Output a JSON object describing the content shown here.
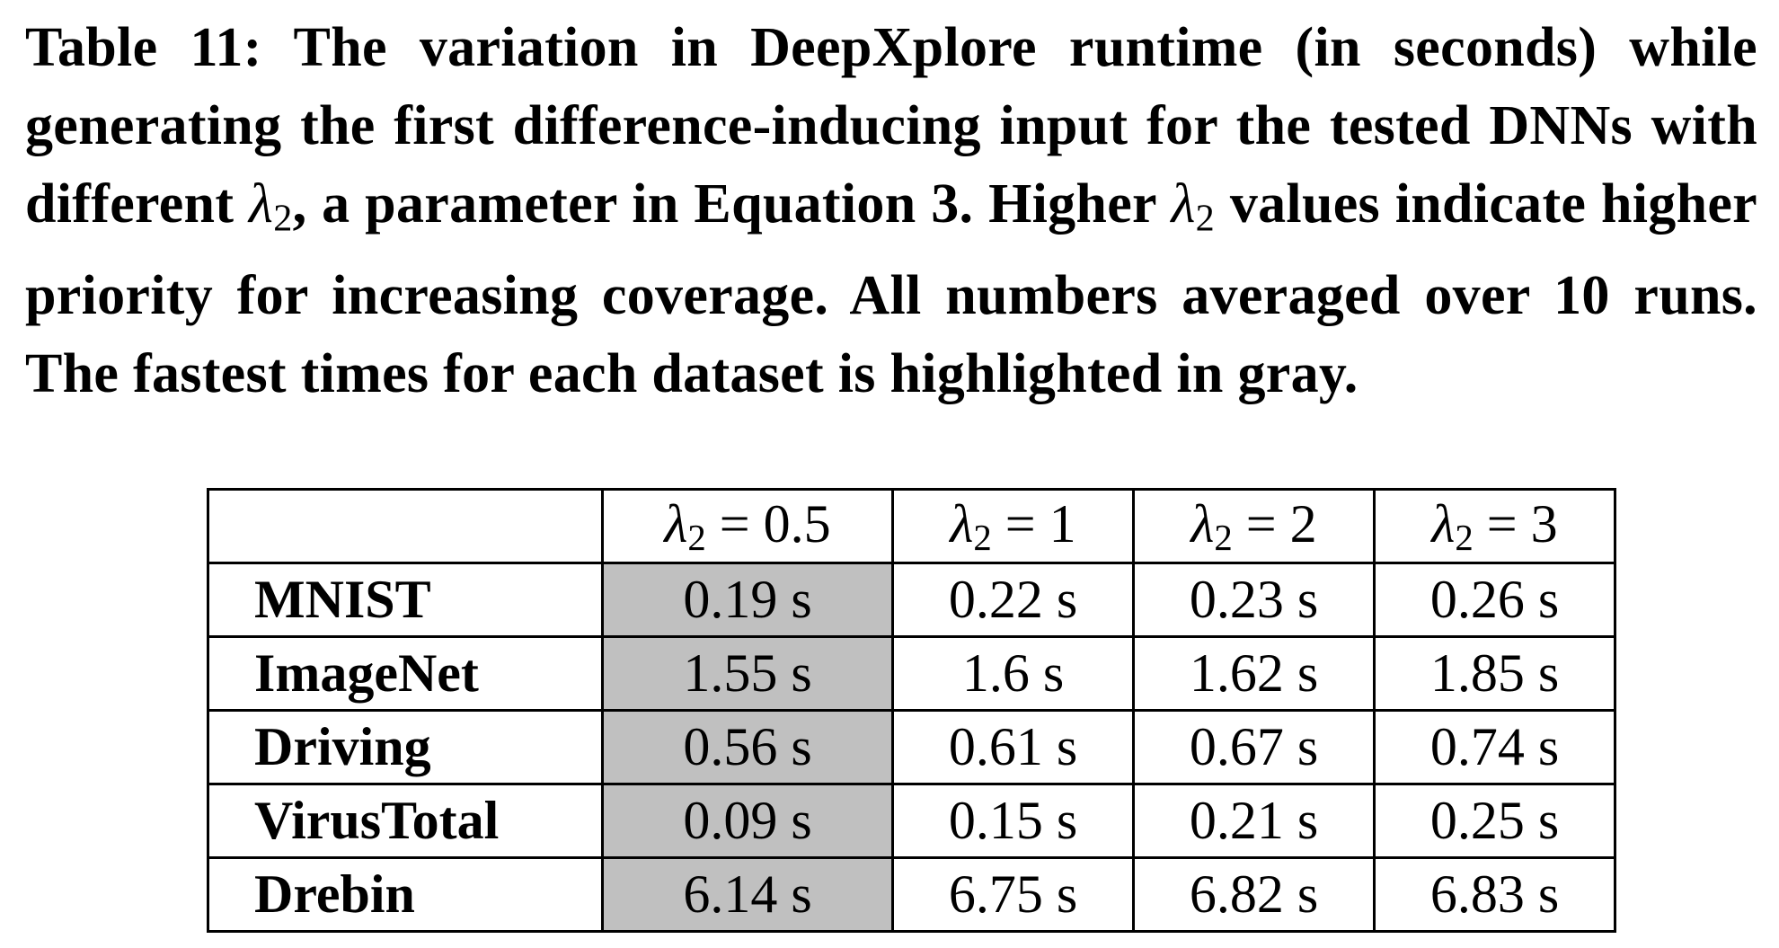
{
  "caption": {
    "label": "Table 11:",
    "text_before": "The variation in DeepXplore runtime (in seconds) while generating the first difference-inducing input for the tested DNNs with different",
    "symbol": "λ",
    "symbol_sub": "2",
    "text_middle": ", a parameter in Equation 3. Higher",
    "text_after": "values indicate higher priority for increasing coverage. All numbers averaged over 10 runs. The fastest times for each dataset is highlighted in gray."
  },
  "table": {
    "column_headers": [
      {
        "symbol": "λ",
        "sub": "2",
        "value": "= 0.5"
      },
      {
        "symbol": "λ",
        "sub": "2",
        "value": "= 1"
      },
      {
        "symbol": "λ",
        "sub": "2",
        "value": "= 2"
      },
      {
        "symbol": "λ",
        "sub": "2",
        "value": "= 3"
      }
    ],
    "rows": [
      {
        "dataset": "MNIST",
        "values": [
          "0.19 s",
          "0.22 s",
          "0.23 s",
          "0.26 s"
        ]
      },
      {
        "dataset": "ImageNet",
        "values": [
          "1.55 s",
          "1.6 s",
          "1.62 s",
          "1.85 s"
        ]
      },
      {
        "dataset": "Driving",
        "values": [
          "0.56 s",
          "0.61 s",
          "0.67 s",
          "0.74 s"
        ]
      },
      {
        "dataset": "VirusTotal",
        "values": [
          "0.09 s",
          "0.15 s",
          "0.21 s",
          "0.25 s"
        ]
      },
      {
        "dataset": "Drebin",
        "values": [
          "6.14 s",
          "6.75 s",
          "6.82 s",
          "6.83 s"
        ]
      }
    ],
    "highlight_color": "#c0c0c0",
    "highlighted_column_index": 0
  }
}
